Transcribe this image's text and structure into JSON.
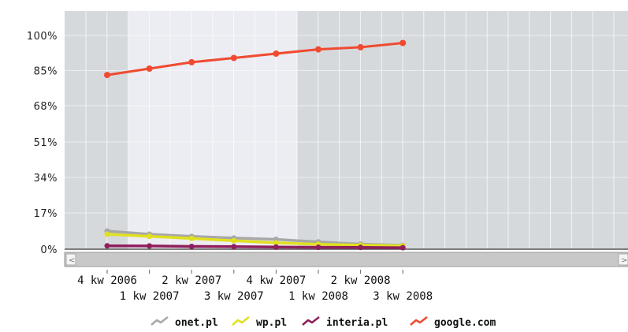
{
  "chart_data": {
    "type": "line",
    "categories": [
      "4 kw 2006",
      "1 kw 2007",
      "2 kw 2007",
      "3 kw 2007",
      "4 kw 2007",
      "1 kw 2008",
      "2 kw 2008",
      "3 kw 2008"
    ],
    "y_ticks": [
      "100%",
      "85%",
      "68%",
      "51%",
      "34%",
      "17%",
      "0%"
    ],
    "ylim": [
      0,
      100
    ],
    "grid": true,
    "legend_position": "bottom",
    "series": [
      {
        "name": "onet.pl",
        "color": "#a8a8a8",
        "values": [
          8.5,
          7.0,
          6.0,
          5.2,
          4.6,
          3.4,
          2.4,
          1.8
        ]
      },
      {
        "name": "wp.pl",
        "color": "#e0e020",
        "values": [
          7.0,
          6.0,
          5.0,
          4.0,
          3.0,
          2.3,
          1.9,
          1.6
        ]
      },
      {
        "name": "interia.pl",
        "color": "#8e1f5c",
        "values": [
          1.6,
          1.5,
          1.3,
          1.2,
          1.0,
          0.9,
          0.8,
          0.7
        ]
      },
      {
        "name": "google.com",
        "color": "#f04a30",
        "values": [
          81.5,
          84.5,
          87.5,
          89.5,
          91.5,
          93.5,
          94.5,
          96.5
        ]
      }
    ]
  },
  "scrollbar": {
    "left_arrow": "<",
    "right_arrow": ">"
  }
}
